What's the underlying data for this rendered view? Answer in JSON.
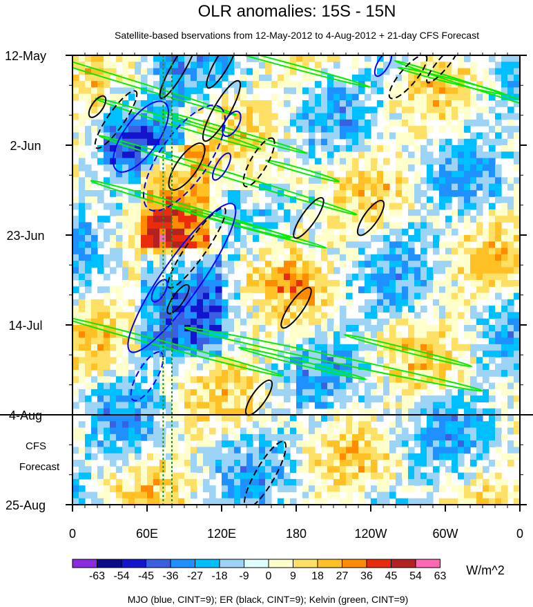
{
  "chart_data": {
    "type": "heatmap",
    "title": "OLR anomalies: 15S - 15N",
    "subtitle": "Satellite-based bservations from 12-May-2012 to 4-Aug-2012 + 21-day CFS Forecast",
    "x_axis": {
      "ticks": [
        {
          "lon": 0,
          "label": "0"
        },
        {
          "lon": 60,
          "label": "60E"
        },
        {
          "lon": 120,
          "label": "120E"
        },
        {
          "lon": 180,
          "label": "180"
        },
        {
          "lon": 240,
          "label": "120W"
        },
        {
          "lon": 300,
          "label": "60W"
        },
        {
          "lon": 360,
          "label": "0"
        }
      ],
      "range": [
        0,
        360
      ]
    },
    "y_axis": {
      "ticks": [
        {
          "day": 0,
          "label": "12-May"
        },
        {
          "day": 21,
          "label": "2-Jun"
        },
        {
          "day": 42,
          "label": "23-Jun"
        },
        {
          "day": 63,
          "label": "14-Jul"
        },
        {
          "day": 84,
          "label": "4-Aug"
        },
        {
          "day": 105,
          "label": "25-Aug"
        }
      ],
      "range": [
        "12-May-2012",
        "25-Aug-2012"
      ],
      "direction": "downward"
    },
    "observation_end": "4-Aug",
    "forecast_label": [
      "CFS",
      "Forecast"
    ],
    "colorbar": {
      "levels": [
        "-63",
        "-54",
        "-45",
        "-36",
        "-27",
        "-18",
        "-9",
        "0",
        "9",
        "18",
        "27",
        "36",
        "45",
        "54",
        "63"
      ],
      "colors": [
        "#8a2be2",
        "#0b0b8b",
        "#1414cd",
        "#3a5fe0",
        "#1e90ff",
        "#00bfff",
        "#9dd3f5",
        "#e0ffff",
        "#ffffcc",
        "#ffe066",
        "#ffc125",
        "#ff8c00",
        "#e82c0c",
        "#b22222",
        "#ff69b4"
      ],
      "units": "W/m^2"
    },
    "contours": [
      {
        "field": "MJO",
        "color": "#0000ff"
      },
      {
        "field": "ER",
        "color": "#000000"
      },
      {
        "field": "Kelvin",
        "color": "#00ee00"
      }
    ],
    "footer": "MJO (blue, CINT=9); ER (black, CINT=9); Kelvin (green, CINT=9)",
    "reference_lines_lon": [
      73,
      80
    ]
  }
}
